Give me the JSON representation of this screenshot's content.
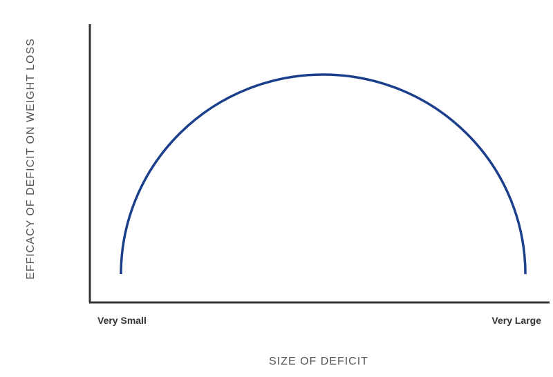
{
  "chart_data": {
    "type": "line",
    "title": "",
    "xlabel": "SIZE OF DEFICIT",
    "ylabel": "EFFICACY OF DEFICIT ON WEIGHT LOSS",
    "x_tick_labels": [
      "Very Small",
      "Very Large"
    ],
    "xlim": [
      0,
      1
    ],
    "ylim": [
      0,
      1
    ],
    "grid": false,
    "legend": "none",
    "series": [
      {
        "style": "semicircle arc",
        "color": "#1b3f8b",
        "x": [
          0.0,
          0.1,
          0.2,
          0.3,
          0.4,
          0.5,
          0.6,
          0.7,
          0.8,
          0.9,
          1.0
        ],
        "y": [
          0.0,
          0.51,
          0.68,
          0.78,
          0.83,
          0.85,
          0.83,
          0.78,
          0.68,
          0.51,
          0.0
        ]
      }
    ]
  },
  "colors": {
    "curve": "#1b3f8b",
    "axis": "#333333",
    "axis_title": "#555555",
    "tick_label": "#333333"
  }
}
